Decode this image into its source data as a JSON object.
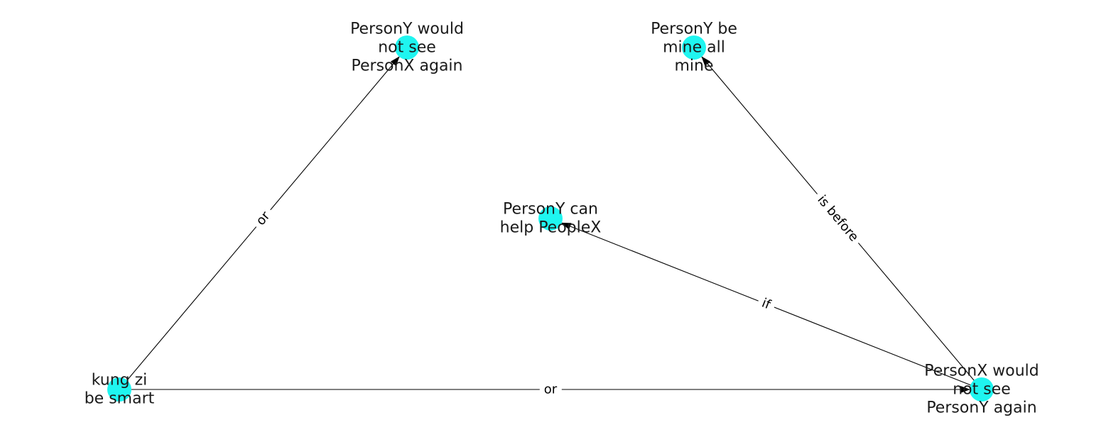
{
  "colors": {
    "node": "#1ff5f0",
    "edge": "#000000",
    "text": "#1a1a1a",
    "background": "#ffffff"
  },
  "nodes": [
    {
      "id": "n1",
      "lines": [
        "PersonY would",
        "not see",
        "PersonX again"
      ]
    },
    {
      "id": "n2",
      "lines": [
        "PersonY be",
        "mine all",
        "mine"
      ]
    },
    {
      "id": "n3",
      "lines": [
        "PersonY can",
        "help PeopleX"
      ]
    },
    {
      "id": "n4",
      "lines": [
        "kung zi",
        "be smart"
      ]
    },
    {
      "id": "n5",
      "lines": [
        "PersonX would",
        "not see",
        "PersonY again"
      ]
    }
  ],
  "edges": [
    {
      "id": "e1",
      "from": "n4",
      "to": "n1",
      "label": "or"
    },
    {
      "id": "e2",
      "from": "n4",
      "to": "n5",
      "label": "or"
    },
    {
      "id": "e3",
      "from": "n5",
      "to": "n3",
      "label": "if"
    },
    {
      "id": "e4",
      "from": "n5",
      "to": "n2",
      "label": "is before"
    }
  ]
}
